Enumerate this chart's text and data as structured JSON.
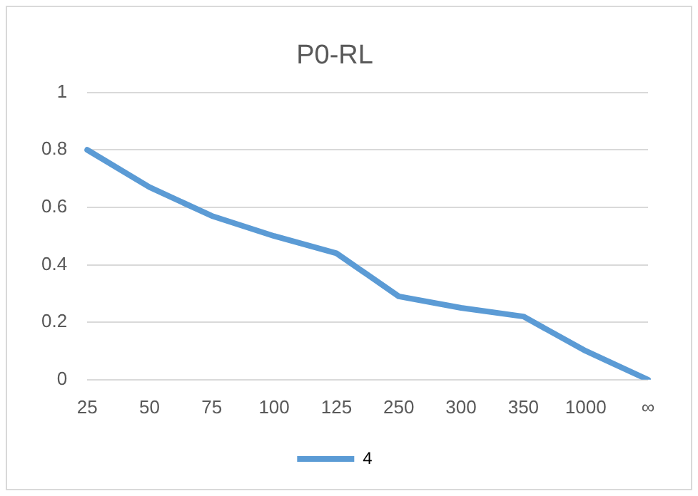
{
  "chart_data": {
    "type": "line",
    "title": "P0-RL",
    "categories": [
      "25",
      "50",
      "75",
      "100",
      "125",
      "250",
      "300",
      "350",
      "1000",
      "∞"
    ],
    "series": [
      {
        "name": "4",
        "color": "#5b9bd5",
        "values": [
          0.8,
          0.67,
          0.57,
          0.5,
          0.44,
          0.29,
          0.25,
          0.22,
          0.1,
          0
        ]
      }
    ],
    "ylim": [
      0,
      1
    ],
    "yticks": [
      0,
      0.2,
      0.4,
      0.6,
      0.8,
      {
        "value": 1,
        "label": "1"
      }
    ],
    "grid": "y",
    "legend": "bottom",
    "marker": "none"
  }
}
